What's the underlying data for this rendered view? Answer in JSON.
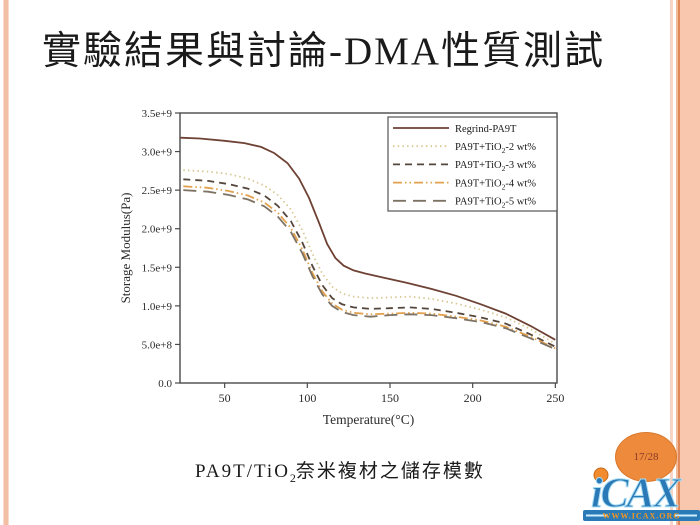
{
  "slide": {
    "title": "實驗結果與討論-DMA性質測試",
    "page_badge": "17/28",
    "caption": {
      "prefix": "PA9T/TiO",
      "sub": "2",
      "suffix": "奈米複材之儲存模數"
    },
    "logo": {
      "name": "iCAX",
      "url_text": "WWW.ICAX.ORG"
    },
    "colors": {
      "edge_stripe": "#f2bfa4",
      "badge_fill": "#ed8a3b",
      "badge_text": "#8b3a2a",
      "logo_blue": "#2b7ab8",
      "logo_orange": "#f5971e"
    }
  },
  "chart_data": {
    "type": "line",
    "title": "",
    "xlabel": "Temperature(°C)",
    "ylabel": "Storage Modulus(Pa)",
    "xlim": [
      23,
      251
    ],
    "ylim_e9": [
      0,
      3.5
    ],
    "x_ticks": [
      50,
      100,
      150,
      200,
      250
    ],
    "y_ticks": [
      {
        "v": 0.0,
        "label": "0.0"
      },
      {
        "v": 0.5,
        "label": "5.0e+8"
      },
      {
        "v": 1.0,
        "label": "1.0e+9"
      },
      {
        "v": 1.5,
        "label": "1.5e+9"
      },
      {
        "v": 2.0,
        "label": "2.0e+9"
      },
      {
        "v": 2.5,
        "label": "2.5e+9"
      },
      {
        "v": 3.0,
        "label": "3.0e+9"
      },
      {
        "v": 3.5,
        "label": "3.5e+9"
      }
    ],
    "grid": false,
    "legend_position": "top-right",
    "series": [
      {
        "name": "Regrind-PA9T",
        "color": "#6e4234",
        "dash": "solid",
        "points_e9": [
          [
            23,
            3.18
          ],
          [
            35,
            3.17
          ],
          [
            50,
            3.14
          ],
          [
            62,
            3.11
          ],
          [
            72,
            3.06
          ],
          [
            80,
            2.98
          ],
          [
            88,
            2.85
          ],
          [
            95,
            2.65
          ],
          [
            101,
            2.4
          ],
          [
            107,
            2.08
          ],
          [
            112,
            1.8
          ],
          [
            117,
            1.62
          ],
          [
            122,
            1.52
          ],
          [
            128,
            1.46
          ],
          [
            135,
            1.42
          ],
          [
            145,
            1.37
          ],
          [
            160,
            1.3
          ],
          [
            175,
            1.22
          ],
          [
            190,
            1.13
          ],
          [
            205,
            1.02
          ],
          [
            220,
            0.9
          ],
          [
            235,
            0.74
          ],
          [
            250,
            0.56
          ]
        ]
      },
      {
        "name": "PA9T+TiO2-2 wt%",
        "color": "#d8c894",
        "dash": "dot",
        "points_e9": [
          [
            25,
            2.76
          ],
          [
            40,
            2.74
          ],
          [
            52,
            2.71
          ],
          [
            64,
            2.65
          ],
          [
            74,
            2.56
          ],
          [
            82,
            2.44
          ],
          [
            90,
            2.25
          ],
          [
            97,
            1.98
          ],
          [
            103,
            1.68
          ],
          [
            109,
            1.42
          ],
          [
            115,
            1.25
          ],
          [
            121,
            1.16
          ],
          [
            128,
            1.12
          ],
          [
            138,
            1.1
          ],
          [
            150,
            1.11
          ],
          [
            162,
            1.12
          ],
          [
            175,
            1.09
          ],
          [
            190,
            1.03
          ],
          [
            205,
            0.95
          ],
          [
            220,
            0.85
          ],
          [
            235,
            0.7
          ],
          [
            250,
            0.51
          ]
        ]
      },
      {
        "name": "PA9T+TiO2-3 wt%",
        "color": "#55463c",
        "dash": "dash",
        "points_e9": [
          [
            25,
            2.64
          ],
          [
            40,
            2.62
          ],
          [
            52,
            2.58
          ],
          [
            64,
            2.52
          ],
          [
            74,
            2.43
          ],
          [
            82,
            2.3
          ],
          [
            90,
            2.1
          ],
          [
            97,
            1.82
          ],
          [
            103,
            1.52
          ],
          [
            109,
            1.27
          ],
          [
            115,
            1.1
          ],
          [
            121,
            1.02
          ],
          [
            128,
            0.98
          ],
          [
            138,
            0.96
          ],
          [
            150,
            0.97
          ],
          [
            162,
            0.98
          ],
          [
            175,
            0.96
          ],
          [
            190,
            0.91
          ],
          [
            205,
            0.85
          ],
          [
            220,
            0.77
          ],
          [
            235,
            0.63
          ],
          [
            250,
            0.47
          ]
        ]
      },
      {
        "name": "PA9T+TiO2-4 wt%",
        "color": "#e2a14e",
        "dash": "dash-dot-dot",
        "points_e9": [
          [
            25,
            2.55
          ],
          [
            40,
            2.53
          ],
          [
            52,
            2.49
          ],
          [
            64,
            2.43
          ],
          [
            74,
            2.34
          ],
          [
            82,
            2.21
          ],
          [
            90,
            2.01
          ],
          [
            97,
            1.73
          ],
          [
            103,
            1.43
          ],
          [
            109,
            1.19
          ],
          [
            115,
            1.03
          ],
          [
            121,
            0.95
          ],
          [
            128,
            0.91
          ],
          [
            138,
            0.89
          ],
          [
            150,
            0.9
          ],
          [
            162,
            0.91
          ],
          [
            175,
            0.9
          ],
          [
            190,
            0.86
          ],
          [
            205,
            0.81
          ],
          [
            220,
            0.73
          ],
          [
            235,
            0.6
          ],
          [
            250,
            0.45
          ]
        ]
      },
      {
        "name": "PA9T+TiO2-5 wt%",
        "color": "#7e7264",
        "dash": "long-dash",
        "points_e9": [
          [
            25,
            2.5
          ],
          [
            40,
            2.48
          ],
          [
            52,
            2.44
          ],
          [
            64,
            2.38
          ],
          [
            74,
            2.29
          ],
          [
            82,
            2.16
          ],
          [
            90,
            1.96
          ],
          [
            97,
            1.68
          ],
          [
            103,
            1.39
          ],
          [
            109,
            1.15
          ],
          [
            115,
            1.0
          ],
          [
            121,
            0.92
          ],
          [
            128,
            0.88
          ],
          [
            138,
            0.86
          ],
          [
            150,
            0.88
          ],
          [
            162,
            0.89
          ],
          [
            175,
            0.88
          ],
          [
            190,
            0.84
          ],
          [
            205,
            0.79
          ],
          [
            220,
            0.71
          ],
          [
            235,
            0.58
          ],
          [
            250,
            0.44
          ]
        ]
      }
    ]
  }
}
